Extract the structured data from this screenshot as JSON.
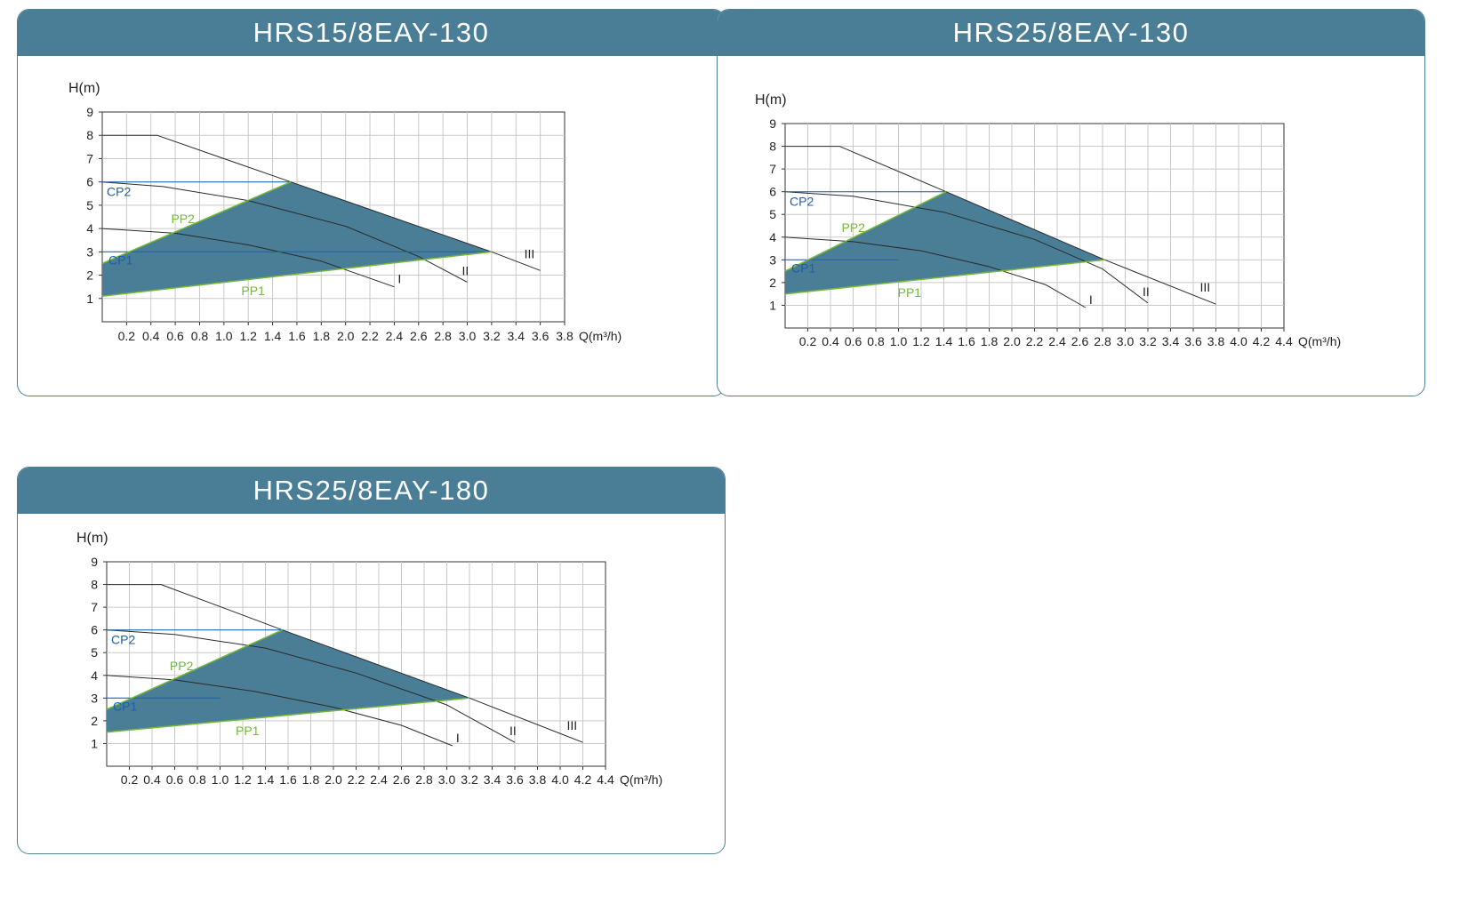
{
  "colors": {
    "header": "#4a7e96",
    "region": "#4a7e96",
    "pp": "#73b83a",
    "cp": "#1f5ea8",
    "curve": "#2a2a2a",
    "grid": "#c9c9c9"
  },
  "chart_data": [
    {
      "type": "line",
      "title": "HRS15/8EAY-130",
      "ylabel": "H(m)",
      "xlabel": "Q(m³/h)",
      "xlim": [
        0,
        3.8
      ],
      "ylim": [
        0,
        9
      ],
      "xtick_labels": [
        "0.2",
        "0.4",
        "0.6",
        "0.8",
        "1.0",
        "1.2",
        "1.4",
        "1.6",
        "1.8",
        "2.0",
        "2.2",
        "2.4",
        "2.6",
        "2.8",
        "3.0",
        "3.2",
        "3.4",
        "3.6",
        "3.8"
      ],
      "ytick_labels": [
        "1",
        "2",
        "3",
        "4",
        "5",
        "6",
        "7",
        "8",
        "9"
      ],
      "grid": true,
      "series": [
        {
          "name": "III",
          "points": [
            [
              0,
              8
            ],
            [
              0.45,
              8
            ],
            [
              1.55,
              6
            ],
            [
              3.2,
              3
            ],
            [
              3.6,
              2.2
            ]
          ]
        },
        {
          "name": "II",
          "points": [
            [
              0,
              6
            ],
            [
              0.5,
              5.8
            ],
            [
              1.2,
              5.2
            ],
            [
              2.0,
              4.1
            ],
            [
              2.6,
              2.8
            ],
            [
              3.0,
              1.7
            ]
          ]
        },
        {
          "name": "I",
          "points": [
            [
              0,
              4
            ],
            [
              0.6,
              3.8
            ],
            [
              1.2,
              3.3
            ],
            [
              1.8,
              2.6
            ],
            [
              2.4,
              1.5
            ]
          ]
        },
        {
          "name": "CP2",
          "points": [
            [
              0,
              6
            ],
            [
              1.55,
              6
            ]
          ]
        },
        {
          "name": "CP1",
          "points": [
            [
              0,
              3
            ],
            [
              3.2,
              3
            ]
          ]
        },
        {
          "name": "PP2",
          "points": [
            [
              0,
              2.5
            ],
            [
              1.55,
              6
            ]
          ]
        },
        {
          "name": "PP1",
          "points": [
            [
              0,
              1.1
            ],
            [
              3.2,
              3
            ]
          ]
        }
      ],
      "region": [
        [
          0,
          1.1
        ],
        [
          0,
          2.5
        ],
        [
          1.55,
          6
        ],
        [
          3.2,
          3
        ]
      ]
    },
    {
      "type": "line",
      "title": "HRS25/8EAY-130",
      "ylabel": "H(m)",
      "xlabel": "Q(m³/h)",
      "xlim": [
        0,
        4.4
      ],
      "ylim": [
        0,
        9
      ],
      "xtick_labels": [
        "0.2",
        "0.4",
        "0.6",
        "0.8",
        "1.0",
        "1.2",
        "1.4",
        "1.6",
        "1.8",
        "2.0",
        "2.2",
        "2.4",
        "2.6",
        "2.8",
        "3.0",
        "3.2",
        "3.4",
        "3.6",
        "3.8",
        "4.0",
        "4.2",
        "4.4"
      ],
      "ytick_labels": [
        "1",
        "2",
        "3",
        "4",
        "5",
        "6",
        "7",
        "8",
        "9"
      ],
      "grid": true,
      "series": [
        {
          "name": "III",
          "points": [
            [
              0,
              8
            ],
            [
              0.48,
              8
            ],
            [
              1.42,
              6
            ],
            [
              2.82,
              3
            ],
            [
              3.8,
              1.05
            ]
          ]
        },
        {
          "name": "II",
          "points": [
            [
              0,
              6
            ],
            [
              0.6,
              5.8
            ],
            [
              1.4,
              5.1
            ],
            [
              2.2,
              3.9
            ],
            [
              2.8,
              2.6
            ],
            [
              3.2,
              1.1
            ]
          ]
        },
        {
          "name": "I",
          "points": [
            [
              0,
              4
            ],
            [
              0.6,
              3.8
            ],
            [
              1.2,
              3.4
            ],
            [
              1.8,
              2.7
            ],
            [
              2.3,
              1.9
            ],
            [
              2.65,
              0.9
            ]
          ]
        },
        {
          "name": "CP2",
          "points": [
            [
              0,
              6
            ],
            [
              1.42,
              6
            ]
          ]
        },
        {
          "name": "CP1",
          "points": [
            [
              0,
              3
            ],
            [
              1.0,
              3
            ]
          ]
        },
        {
          "name": "PP2",
          "points": [
            [
              0,
              2.5
            ],
            [
              1.42,
              6
            ]
          ]
        },
        {
          "name": "PP1",
          "points": [
            [
              0,
              1.5
            ],
            [
              2.82,
              3
            ]
          ]
        }
      ],
      "region": [
        [
          0,
          1.5
        ],
        [
          0,
          2.5
        ],
        [
          1.42,
          6
        ],
        [
          2.82,
          3
        ]
      ]
    },
    {
      "type": "line",
      "title": "HRS25/8EAY-180",
      "ylabel": "H(m)",
      "xlabel": "Q(m³/h)",
      "xlim": [
        0,
        4.4
      ],
      "ylim": [
        0,
        9
      ],
      "xtick_labels": [
        "0.2",
        "0.4",
        "0.6",
        "0.8",
        "1.0",
        "1.2",
        "1.4",
        "1.6",
        "1.8",
        "2.0",
        "2.2",
        "2.4",
        "2.6",
        "2.8",
        "3.0",
        "3.2",
        "3.4",
        "3.6",
        "3.8",
        "4.0",
        "4.2",
        "4.4"
      ],
      "ytick_labels": [
        "1",
        "2",
        "3",
        "4",
        "5",
        "6",
        "7",
        "8",
        "9"
      ],
      "grid": true,
      "series": [
        {
          "name": "III",
          "points": [
            [
              0,
              8
            ],
            [
              0.48,
              8
            ],
            [
              1.55,
              6
            ],
            [
              3.2,
              3
            ],
            [
              4.2,
              1.05
            ]
          ]
        },
        {
          "name": "II",
          "points": [
            [
              0,
              6
            ],
            [
              0.6,
              5.8
            ],
            [
              1.4,
              5.2
            ],
            [
              2.2,
              4.1
            ],
            [
              3.0,
              2.7
            ],
            [
              3.6,
              1.05
            ]
          ]
        },
        {
          "name": "I",
          "points": [
            [
              0,
              4
            ],
            [
              0.6,
              3.8
            ],
            [
              1.3,
              3.3
            ],
            [
              2.0,
              2.6
            ],
            [
              2.6,
              1.8
            ],
            [
              3.05,
              0.9
            ]
          ]
        },
        {
          "name": "CP2",
          "points": [
            [
              0,
              6
            ],
            [
              1.55,
              6
            ]
          ]
        },
        {
          "name": "CP1",
          "points": [
            [
              0,
              3
            ],
            [
              1.0,
              3
            ]
          ]
        },
        {
          "name": "PP2",
          "points": [
            [
              0,
              2.5
            ],
            [
              1.55,
              6
            ]
          ]
        },
        {
          "name": "PP1",
          "points": [
            [
              0,
              1.5
            ],
            [
              3.2,
              3
            ]
          ]
        }
      ],
      "region": [
        [
          0,
          1.5
        ],
        [
          0,
          2.5
        ],
        [
          1.55,
          6
        ],
        [
          3.2,
          3
        ]
      ]
    }
  ]
}
